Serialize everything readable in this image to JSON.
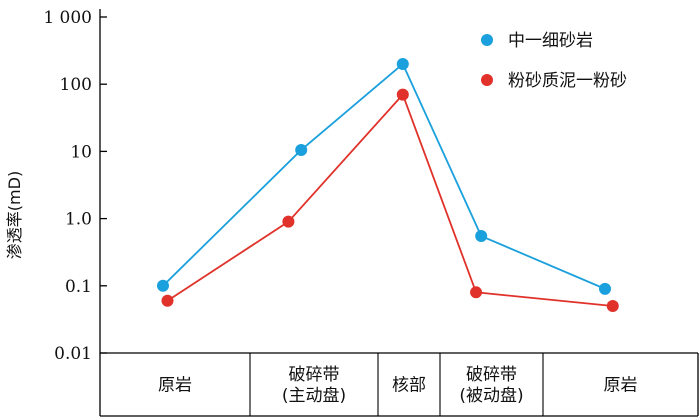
{
  "chart_data": {
    "type": "line",
    "yscale": "log",
    "ylim": [
      0.01,
      1000
    ],
    "ylabel": "渗透率(mD)",
    "yticks": [
      {
        "value": 0.01,
        "label": "0.01"
      },
      {
        "value": 0.1,
        "label": "0.1"
      },
      {
        "value": 1,
        "label": "1.0"
      },
      {
        "value": 10,
        "label": "10"
      },
      {
        "value": 100,
        "label": "100"
      },
      {
        "value": 1000,
        "label": "1 000"
      }
    ],
    "categories": [
      {
        "lines": [
          "原岩"
        ]
      },
      {
        "lines": [
          "破碎带",
          "(主动盘)"
        ]
      },
      {
        "lines": [
          "核部"
        ]
      },
      {
        "lines": [
          "破碎带",
          "(被动盘)"
        ]
      },
      {
        "lines": [
          "原岩"
        ]
      }
    ],
    "series": [
      {
        "name": "中一细砂岩",
        "color": "#1aa0dc",
        "points": [
          [
            0.42,
            0.1
          ],
          [
            1.4,
            10.5
          ],
          [
            2.4,
            200
          ],
          [
            3.4,
            0.55
          ],
          [
            4.4,
            0.09
          ]
        ]
      },
      {
        "name": "粉砂质泥一粉砂",
        "color": "#e0322a",
        "points": [
          [
            0.45,
            0.06
          ],
          [
            1.3,
            0.9
          ],
          [
            2.4,
            70
          ],
          [
            3.35,
            0.08
          ],
          [
            4.45,
            0.05
          ]
        ]
      }
    ],
    "legend": "top-right",
    "grid": false
  }
}
